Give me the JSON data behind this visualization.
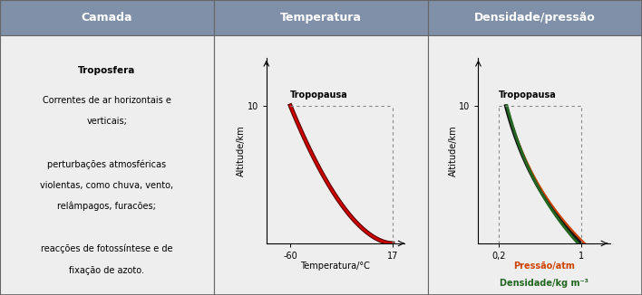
{
  "table_bg": "#eeeeee",
  "header_bg": "#8090a8",
  "header_text_color": "#ffffff",
  "cell_bg": "#eeeeee",
  "border_color": "#666666",
  "col_headers": [
    "Camada",
    "Temperatura",
    "Densidade/pressão"
  ],
  "camada_title": "Troposfera",
  "temp_xlabel": "Temperatura/°C",
  "temp_ylabel": "Altitude/km",
  "temp_tropopausa_label": "Tropopausa",
  "temp_line_color1": "#cc0000",
  "temp_line_color2": "#550000",
  "dens_xlabel_pressure": "Pressão/atm",
  "dens_xlabel_density": "Densidade/kg m⁻³",
  "dens_ylabel": "Altitude/km",
  "dens_tropopausa_label": "Tropopausa",
  "dens_line_color_black": "#111111",
  "dens_line_color_green": "#226622",
  "dens_line_color_orange": "#cc4400",
  "pressure_label_color": "#cc4400",
  "density_label_color": "#226622",
  "header_fontsize": 9,
  "body_fontsize": 7.5,
  "graph_fontsize": 7
}
